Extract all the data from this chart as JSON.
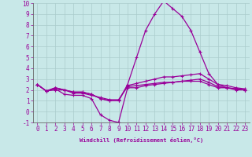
{
  "xlabel": "Windchill (Refroidissement éolien,°C)",
  "x": [
    0,
    1,
    2,
    3,
    4,
    5,
    6,
    7,
    8,
    9,
    10,
    11,
    12,
    13,
    14,
    15,
    16,
    17,
    18,
    19,
    20,
    21,
    22,
    23
  ],
  "line1": [
    2.5,
    1.9,
    2.1,
    1.6,
    1.5,
    1.5,
    1.2,
    -0.3,
    -0.8,
    -1.0,
    2.2,
    2.2,
    2.4,
    2.5,
    2.6,
    2.7,
    2.8,
    2.8,
    2.8,
    2.5,
    2.2,
    2.2,
    2.1,
    2.0
  ],
  "line2": [
    2.5,
    1.9,
    2.2,
    2.0,
    1.8,
    1.8,
    1.6,
    1.2,
    1.0,
    1.0,
    2.4,
    2.6,
    2.8,
    3.0,
    3.2,
    3.2,
    3.3,
    3.4,
    3.5,
    3.0,
    2.5,
    2.4,
    2.2,
    2.1
  ],
  "line3": [
    2.5,
    1.9,
    2.2,
    2.0,
    1.8,
    1.8,
    1.6,
    1.2,
    1.0,
    1.0,
    2.5,
    5.0,
    7.5,
    9.0,
    10.2,
    9.5,
    8.8,
    7.5,
    5.5,
    3.5,
    2.5,
    2.2,
    2.0,
    2.0
  ],
  "line4": [
    2.5,
    1.9,
    2.0,
    2.0,
    1.7,
    1.7,
    1.5,
    1.3,
    1.1,
    1.1,
    2.3,
    2.4,
    2.5,
    2.6,
    2.7,
    2.7,
    2.8,
    2.9,
    3.0,
    2.7,
    2.3,
    2.2,
    2.1,
    2.0
  ],
  "line_color": "#990099",
  "bg_color": "#c8e8e8",
  "grid_color": "#b0d0d0",
  "ylim": [
    -1,
    10
  ],
  "yticks": [
    -1,
    0,
    1,
    2,
    3,
    4,
    5,
    6,
    7,
    8,
    9,
    10
  ],
  "xticks": [
    0,
    1,
    2,
    3,
    4,
    5,
    6,
    7,
    8,
    9,
    10,
    11,
    12,
    13,
    14,
    15,
    16,
    17,
    18,
    19,
    20,
    21,
    22,
    23
  ],
  "label_fontsize": 5.0,
  "tick_fontsize": 5.5
}
